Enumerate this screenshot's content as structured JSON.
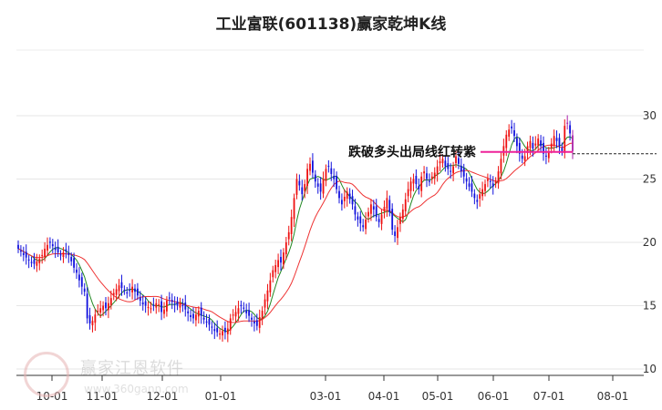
{
  "chart_data": {
    "type": "candlestick",
    "title": "工业富联(601138)赢家乾坤K线",
    "y_ticks": [
      10,
      15,
      20,
      25,
      30
    ],
    "ylim": [
      10,
      30
    ],
    "x_tick_labels": [
      "10-01",
      "11-01",
      "12-01",
      "01-01",
      "03-01",
      "04-01",
      "05-01",
      "06-01",
      "07-01",
      "08-01"
    ],
    "annotation": {
      "text": "跌破多头出局线红转紫",
      "value": 27.0
    },
    "grid": "horizontal",
    "colors": {
      "up": "#ee1111",
      "down": "#1111dd",
      "purple": "#aa22aa",
      "ma_fast": "#228822",
      "ma_slow": "#ee3333",
      "annotation_line": "#ee2299"
    },
    "candles_close": [
      19.5,
      19.3,
      19.0,
      18.8,
      18.6,
      18.4,
      18.3,
      18.5,
      18.7,
      19.0,
      19.5,
      19.8,
      20.0,
      19.7,
      19.4,
      19.2,
      19.0,
      19.2,
      19.3,
      19.0,
      18.5,
      18.0,
      17.6,
      17.0,
      16.5,
      16.1,
      14.0,
      13.6,
      13.8,
      14.3,
      14.6,
      14.8,
      15.0,
      14.8,
      15.2,
      15.6,
      16.0,
      16.3,
      16.6,
      16.4,
      16.2,
      16.0,
      16.2,
      16.5,
      16.1,
      15.8,
      15.4,
      15.1,
      15.0,
      14.9,
      14.8,
      15.0,
      15.2,
      15.1,
      14.5,
      14.7,
      15.4,
      15.6,
      15.3,
      15.1,
      15.0,
      15.2,
      15.0,
      14.7,
      14.4,
      14.1,
      14.0,
      14.3,
      14.6,
      14.2,
      13.9,
      13.7,
      13.5,
      13.3,
      13.0,
      12.9,
      12.8,
      13.0,
      12.9,
      13.2,
      14.0,
      14.3,
      14.5,
      14.8,
      15.0,
      14.8,
      14.4,
      14.2,
      13.9,
      13.6,
      13.4,
      14.1,
      14.6,
      15.5,
      16.2,
      17.0,
      17.8,
      18.2,
      18.6,
      18.4,
      19.2,
      20.0,
      20.8,
      22.0,
      23.5,
      25.0,
      24.5,
      23.8,
      24.6,
      25.8,
      26.2,
      25.5,
      24.8,
      24.4,
      24.0,
      25.0,
      25.8,
      26.0,
      25.4,
      25.0,
      24.2,
      23.5,
      23.0,
      23.6,
      24.0,
      23.4,
      23.0,
      22.2,
      21.8,
      21.5,
      21.2,
      21.8,
      22.4,
      23.0,
      22.6,
      22.0,
      21.6,
      22.2,
      22.8,
      23.5,
      22.4,
      21.0,
      20.5,
      21.2,
      22.0,
      22.6,
      23.4,
      24.2,
      24.8,
      25.0,
      24.6,
      24.2,
      25.2,
      25.6,
      25.0,
      24.8,
      25.2,
      25.5,
      26.0,
      26.4,
      26.6,
      26.0,
      25.8,
      25.6,
      26.0,
      26.8,
      26.2,
      25.6,
      25.2,
      24.8,
      24.4,
      24.0,
      23.5,
      23.2,
      23.8,
      24.2,
      24.6,
      25.0,
      24.8,
      24.4,
      24.8,
      25.6,
      26.6,
      27.6,
      28.5,
      28.9,
      29.0,
      28.4,
      27.6,
      27.0,
      26.6,
      26.8,
      27.6,
      28.0,
      27.4,
      27.8,
      28.2,
      27.6,
      27.0,
      26.8,
      27.2,
      27.8,
      28.4,
      28.0,
      27.6,
      27.2,
      29.2,
      29.4,
      28.6,
      27.2
    ]
  }
}
